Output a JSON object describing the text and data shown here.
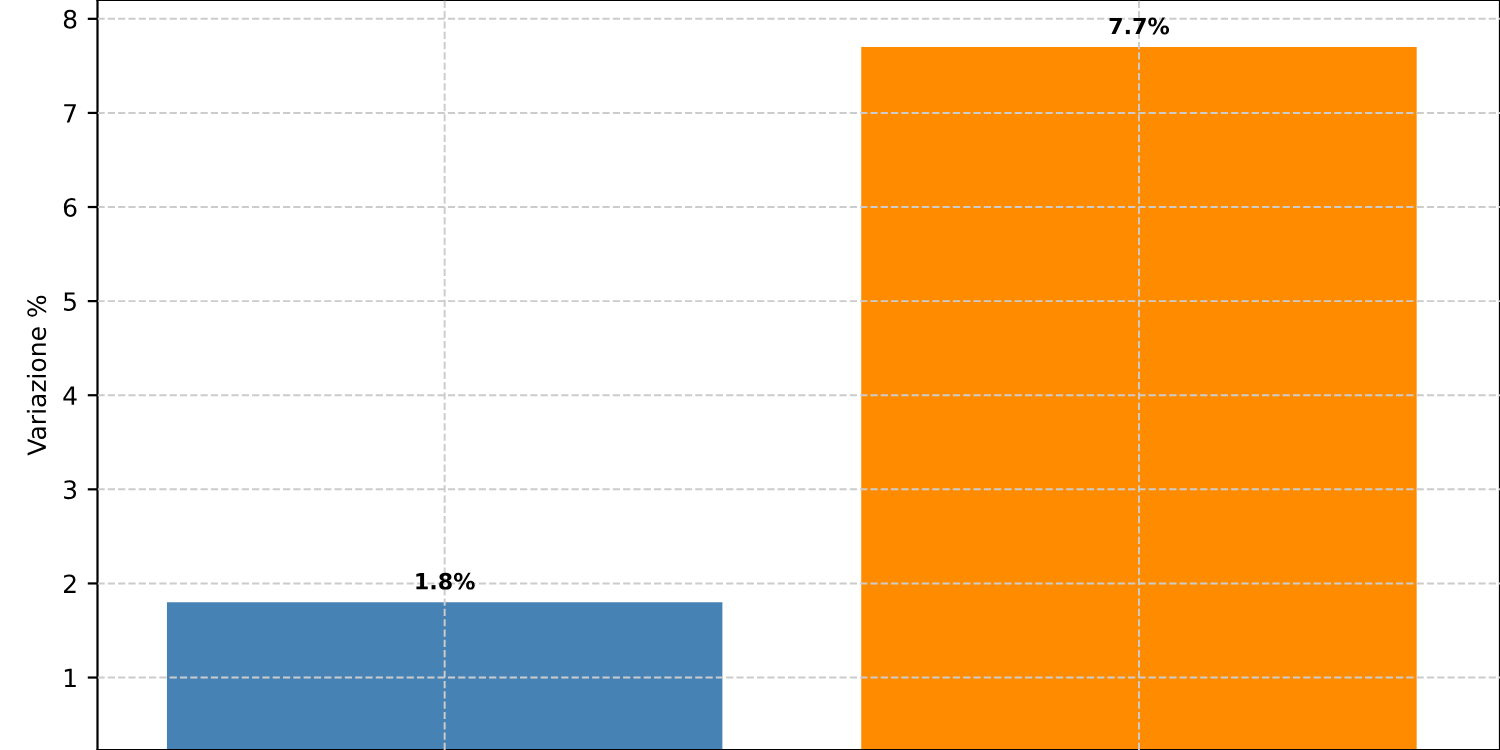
{
  "chart_data": {
    "type": "bar",
    "ylabel": "Variazione %",
    "categories": [
      null,
      null
    ],
    "values": [
      1.8,
      7.7
    ],
    "colors": [
      "#4682b4",
      "#ff8c00"
    ],
    "value_labels": [
      "1.8%",
      "7.7%"
    ],
    "ylim": [
      0.23,
      8.2
    ],
    "yticks": [
      1,
      2,
      3,
      4,
      5,
      6,
      7,
      8
    ],
    "grid": true
  }
}
